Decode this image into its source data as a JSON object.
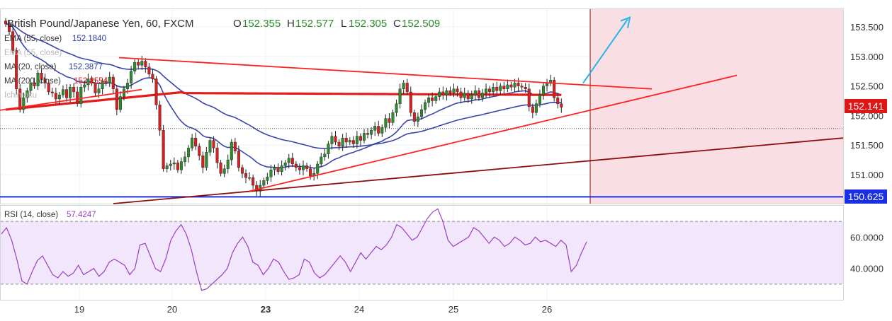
{
  "header": {
    "symbol": "British Pound/Japanese Yen, 60, FXCM",
    "open_label": "O",
    "open": "152.355",
    "high_label": "H",
    "high": "152.577",
    "low_label": "L",
    "low": "152.305",
    "close_label": "C",
    "close": "152.509"
  },
  "indicators": [
    {
      "label": "EMA (55, close)",
      "value": "152.1840",
      "color": "#2e3b9b"
    },
    {
      "label": "EMA (55, close)",
      "value": "",
      "color": "#b0b0b0"
    },
    {
      "label": "MA (20, close)",
      "value": "152.3877",
      "color": "#2e3b9b"
    },
    {
      "label": "MA (200, close)",
      "value": "152.2554",
      "color": "#e11b1b"
    },
    {
      "label": "Ichimoku",
      "value": "",
      "color": "#b0b0b0"
    }
  ],
  "price_tags": {
    "current": "152.141",
    "support": "150.625"
  },
  "rsi": {
    "label": "RSI (14, close)",
    "value": "57.4247"
  },
  "colors": {
    "bull": "#2e8b2e",
    "bear": "#d81f1f",
    "ema": "#3a45a8",
    "ma200": "#e21b1b",
    "trendline": "#ff2020",
    "long_trend": "#8b0f0f",
    "support": "#1a2ee8",
    "arrow": "#29b6e6",
    "zone": "#f9dfe3",
    "rsi_line": "#9b3fbf",
    "rsi_band": "#f1e6fb"
  },
  "chart_data": [
    {
      "type": "candlestick",
      "title": "British Pound/Japanese Yen, 60, FXCM",
      "xlabel": "",
      "ylabel": "",
      "x_tick_labels": [
        "19",
        "20",
        "23",
        "24",
        "25",
        "26"
      ],
      "y_tick_labels": [
        "153.500",
        "153.000",
        "152.500",
        "152.000",
        "151.500",
        "151.000"
      ],
      "ylim": [
        150.55,
        153.75
      ],
      "grid": true,
      "candles_close": [
        153.55,
        153.42,
        153.1,
        152.45,
        152.1,
        152.3,
        152.42,
        152.55,
        152.5,
        152.72,
        152.62,
        152.55,
        152.4,
        152.38,
        152.28,
        152.35,
        152.44,
        152.3,
        152.48,
        152.4,
        152.2,
        152.48,
        152.52,
        152.62,
        152.55,
        152.38,
        152.45,
        152.58,
        152.55,
        152.65,
        152.45,
        152.1,
        152.32,
        152.45,
        152.55,
        152.75,
        152.9,
        152.85,
        152.92,
        152.82,
        152.7,
        152.62,
        152.18,
        151.75,
        151.1,
        151.15,
        151.18,
        151.2,
        151.08,
        151.22,
        151.3,
        151.45,
        151.62,
        151.48,
        151.32,
        151.12,
        151.38,
        151.58,
        151.45,
        151.2,
        151.02,
        151.1,
        151.25,
        151.55,
        151.4,
        151.12,
        151.02,
        150.95,
        150.95,
        150.82,
        150.72,
        150.82,
        150.9,
        150.96,
        151.08,
        151.12,
        151.05,
        151.15,
        151.2,
        151.28,
        151.18,
        151.12,
        151.08,
        151.15,
        151.1,
        150.98,
        151.02,
        151.18,
        151.3,
        151.35,
        151.52,
        151.65,
        151.55,
        151.48,
        151.62,
        151.55,
        151.58,
        151.52,
        151.65,
        151.58,
        151.7,
        151.68,
        151.75,
        151.82,
        151.7,
        151.8,
        151.95,
        151.88,
        152.05,
        152.2,
        152.45,
        152.55,
        152.4,
        152.05,
        151.9,
        151.98,
        152.1,
        152.22,
        152.3,
        152.25,
        152.32,
        152.4,
        152.35,
        152.42,
        152.38,
        152.45,
        152.4,
        152.3,
        152.38,
        152.28,
        152.35,
        152.42,
        152.3,
        152.38,
        152.45,
        152.4,
        152.48,
        152.42,
        152.5,
        152.45,
        152.52,
        152.48,
        152.55,
        152.5,
        152.48,
        152.45,
        152.15,
        152.05,
        152.2,
        152.35,
        152.5,
        152.55,
        152.6,
        152.3,
        152.2,
        152.14
      ],
      "support_level": 150.625,
      "current_price": 152.141,
      "rsi": {
        "label": "RSI (14, close)",
        "ylim": [
          20,
          80
        ],
        "y_tick_labels": [
          "60.0000",
          "40.0000"
        ],
        "bands": [
          70,
          30
        ],
        "values": [
          62,
          66,
          58,
          46,
          32,
          30,
          38,
          45,
          48,
          42,
          36,
          34,
          38,
          35,
          37,
          42,
          36,
          38,
          40,
          35,
          38,
          44,
          46,
          44,
          42,
          36,
          40,
          55,
          56,
          48,
          40,
          38,
          46,
          58,
          64,
          68,
          62,
          52,
          38,
          26,
          27,
          30,
          33,
          36,
          40,
          50,
          56,
          60,
          54,
          44,
          42,
          36,
          40,
          46,
          44,
          38,
          33,
          34,
          36,
          46,
          44,
          37,
          34,
          36,
          40,
          44,
          48,
          44,
          38,
          44,
          50,
          46,
          50,
          54,
          52,
          55,
          60,
          68,
          66,
          62,
          58,
          60,
          66,
          72,
          76,
          78,
          70,
          58,
          54,
          56,
          58,
          60,
          66,
          64,
          60,
          56,
          60,
          58,
          54,
          56,
          60,
          58,
          55,
          56,
          60,
          57,
          58,
          56,
          54,
          58,
          55,
          38,
          42,
          50,
          57
        ]
      }
    }
  ]
}
